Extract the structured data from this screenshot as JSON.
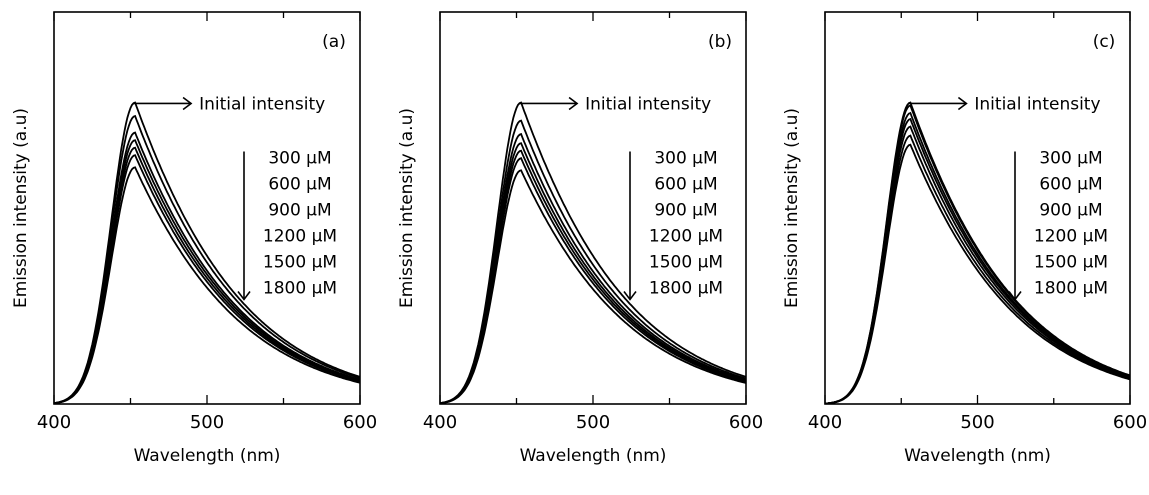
{
  "chart_data": [
    {
      "type": "line",
      "panel_label": "(a)",
      "xlabel": "Wavelength (nm)",
      "ylabel": "Emission intensity (a.u)",
      "xlim": [
        400,
        600
      ],
      "ylim": [
        0,
        1.3
      ],
      "x_ticks": [
        "400",
        "500",
        "600"
      ],
      "y_ticks": false,
      "peak_wavelength": 453,
      "series": [
        {
          "peak": 1.0
        },
        {
          "peak": 0.955
        },
        {
          "peak": 0.9
        },
        {
          "peak": 0.875
        },
        {
          "peak": 0.85
        },
        {
          "peak": 0.825
        },
        {
          "peak": 0.785
        }
      ],
      "annotations": {
        "initial": "Initial intensity",
        "concentrations": [
          "300 µM",
          "600 µM",
          "900 µM",
          "1200 µM",
          "1500 µM",
          "1800 µM"
        ]
      }
    },
    {
      "type": "line",
      "panel_label": "(b)",
      "xlabel": "Wavelength (nm)",
      "ylabel": "Emission intensity (a.u)",
      "xlim": [
        400,
        600
      ],
      "ylim": [
        0,
        1.3
      ],
      "x_ticks": [
        "400",
        "500",
        "600"
      ],
      "y_ticks": false,
      "peak_wavelength": 453,
      "series": [
        {
          "peak": 1.0
        },
        {
          "peak": 0.94
        },
        {
          "peak": 0.895
        },
        {
          "peak": 0.865
        },
        {
          "peak": 0.84
        },
        {
          "peak": 0.815
        },
        {
          "peak": 0.775
        }
      ],
      "annotations": {
        "initial": "Initial intensity",
        "concentrations": [
          "300 µM",
          "600 µM",
          "900 µM",
          "1200 µM",
          "1500 µM",
          "1800 µM"
        ]
      }
    },
    {
      "type": "line",
      "panel_label": "(c)",
      "xlabel": "Wavelength (nm)",
      "ylabel": "Emission intensity (a.u)",
      "xlim": [
        400,
        600
      ],
      "ylim": [
        0,
        1.3
      ],
      "x_ticks": [
        "400",
        "500",
        "600"
      ],
      "y_ticks": false,
      "peak_wavelength": 456,
      "series": [
        {
          "peak": 1.0
        },
        {
          "peak": 0.99
        },
        {
          "peak": 0.965
        },
        {
          "peak": 0.945
        },
        {
          "peak": 0.92
        },
        {
          "peak": 0.89
        },
        {
          "peak": 0.86
        }
      ],
      "annotations": {
        "initial": "Initial intensity",
        "concentrations": [
          "300 µM",
          "600 µM",
          "900 µM",
          "1200 µM",
          "1500 µM",
          "1800 µM"
        ]
      }
    }
  ]
}
